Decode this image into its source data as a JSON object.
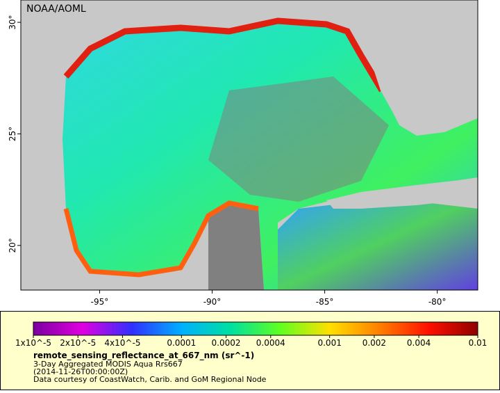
{
  "map": {
    "credit": "NOAA/AOML",
    "lon_range": [
      -98.5,
      -78.2
    ],
    "lat_range": [
      18,
      31
    ],
    "lon_ticks": [
      {
        "value": -95,
        "label": "-95°"
      },
      {
        "value": -90,
        "label": "-90°"
      },
      {
        "value": -85,
        "label": "-85°"
      },
      {
        "value": -80,
        "label": "-80°"
      }
    ],
    "lat_ticks": [
      {
        "value": 20,
        "label": "20°"
      },
      {
        "value": 25,
        "label": "25°"
      },
      {
        "value": 30,
        "label": "30°"
      }
    ]
  },
  "legend": {
    "scale": "log",
    "range": [
      1e-05,
      0.01
    ],
    "colors": [
      "#7a00a0",
      "#e000e0",
      "#3030ff",
      "#00b0ff",
      "#00e0a0",
      "#60ff20",
      "#ffe000",
      "#ff8000",
      "#ff1000",
      "#900000"
    ],
    "ticks": [
      {
        "value": 1e-05,
        "label": "1x10^-5"
      },
      {
        "value": 2e-05,
        "label": "2x10^-5"
      },
      {
        "value": 4e-05,
        "label": "4x10^-5"
      },
      {
        "value": 0.0001,
        "label": "0.0001"
      },
      {
        "value": 0.0002,
        "label": "0.0002"
      },
      {
        "value": 0.0004,
        "label": "0.0004"
      },
      {
        "value": 0.001,
        "label": "0.001"
      },
      {
        "value": 0.002,
        "label": "0.002"
      },
      {
        "value": 0.004,
        "label": "0.004"
      },
      {
        "value": 0.01,
        "label": "0.01"
      }
    ],
    "title": "remote_sensing_reflectance_at_667_nm (sr^-1)",
    "lines": [
      "3-Day Aggregated MODIS Aqua Rrs667",
      "(2014-11-26T00:00:00Z)",
      "Data courtesy of CoastWatch, Carib. and GoM Regional Node"
    ]
  }
}
